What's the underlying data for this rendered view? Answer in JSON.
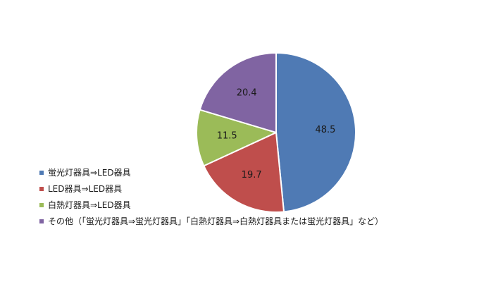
{
  "chart_data": {
    "type": "pie",
    "categories": [
      "蛍光灯器具⇒LED器具",
      "LED器具⇒LED器具",
      "白熱灯器具⇒LED器具",
      "その他（「蛍光灯器具⇒蛍光灯器具」「白熱灯器具⇒白熱灯器具または蛍光灯器具」など）"
    ],
    "values": [
      48.5,
      19.7,
      11.5,
      20.4
    ],
    "data_labels": [
      "48.5",
      "19.7",
      "11.5",
      "20.4"
    ],
    "colors": [
      "#4f7ab4",
      "#bf4e4c",
      "#9bbb58",
      "#8064a2"
    ],
    "start_angle_deg": 0,
    "direction": "clockwise",
    "legend_position": "left",
    "title": ""
  }
}
